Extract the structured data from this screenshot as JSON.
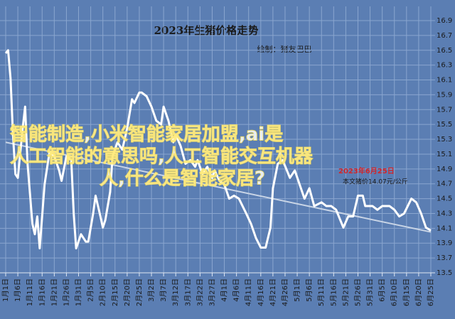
{
  "chart_data": {
    "type": "line",
    "title": "2023年生猪价格走势",
    "subtitle": "绘制：猪友巴巴",
    "annotations": [
      "2023年6月25日",
      "本文猪价14.07元/公斤"
    ],
    "overlay": [
      "智能制造,小米智能家居加盟,ai是",
      "人工智能的意思吗,人工智能交互机器",
      "人,什么是智能家居?"
    ],
    "xlim": [
      0,
      175
    ],
    "xticks": [
      {
        "value": 0,
        "label": "1月1日"
      },
      {
        "value": 5,
        "label": "1月6日"
      },
      {
        "value": 10,
        "label": "1月11日"
      },
      {
        "value": 15,
        "label": "1月16日"
      },
      {
        "value": 20,
        "label": "1月21日"
      },
      {
        "value": 25,
        "label": "1月26日"
      },
      {
        "value": 30,
        "label": "1月31日"
      },
      {
        "value": 35,
        "label": "2月5日"
      },
      {
        "value": 40,
        "label": "2月10日"
      },
      {
        "value": 45,
        "label": "2月15日"
      },
      {
        "value": 50,
        "label": "2月20日"
      },
      {
        "value": 55,
        "label": "2月25日"
      },
      {
        "value": 60,
        "label": "3月2日"
      },
      {
        "value": 65,
        "label": "3月7日"
      },
      {
        "value": 70,
        "label": "3月12日"
      },
      {
        "value": 75,
        "label": "3月17日"
      },
      {
        "value": 80,
        "label": "3月22日"
      },
      {
        "value": 85,
        "label": "3月27日"
      },
      {
        "value": 90,
        "label": "4月1日"
      },
      {
        "value": 95,
        "label": "4月6日"
      },
      {
        "value": 100,
        "label": "4月11日"
      },
      {
        "value": 105,
        "label": "4月16日"
      },
      {
        "value": 110,
        "label": "4月21日"
      },
      {
        "value": 115,
        "label": "4月26日"
      },
      {
        "value": 120,
        "label": "5月1日"
      },
      {
        "value": 125,
        "label": "5月6日"
      },
      {
        "value": 130,
        "label": "5月11日"
      },
      {
        "value": 135,
        "label": "5月16日"
      },
      {
        "value": 140,
        "label": "5月21日"
      },
      {
        "value": 145,
        "label": "5月26日"
      },
      {
        "value": 150,
        "label": "5月31日"
      },
      {
        "value": 155,
        "label": "6月5日"
      },
      {
        "value": 160,
        "label": "6月10日"
      },
      {
        "value": 165,
        "label": "6月15日"
      },
      {
        "value": 170,
        "label": "6月20日"
      },
      {
        "value": 175,
        "label": "6月25日"
      }
    ],
    "ylim": [
      13.5,
      16.9
    ],
    "yticks": [
      13.5,
      13.7,
      13.9,
      14.1,
      14.3,
      14.5,
      14.7,
      14.9,
      15.1,
      15.3,
      15.5,
      15.7,
      15.9,
      16.1,
      16.3,
      16.5,
      16.7,
      16.9
    ],
    "grid": true,
    "series": [
      {
        "color": "#ffffff",
        "x": [
          0,
          1,
          2,
          3,
          4,
          5,
          7,
          8,
          9,
          11,
          12,
          13,
          14,
          16,
          18,
          20,
          22,
          23,
          25,
          27,
          28,
          29,
          31,
          33,
          34,
          35,
          36,
          37,
          39,
          40,
          41,
          43,
          44,
          46,
          48,
          50,
          52,
          53,
          55,
          56,
          58,
          60,
          62,
          64,
          65,
          67,
          69,
          70,
          72,
          74,
          76,
          78,
          79,
          81,
          83,
          85,
          86,
          88,
          90,
          92,
          94,
          96,
          99,
          101,
          103,
          105,
          107,
          109,
          110,
          112,
          114,
          117,
          119,
          121,
          123,
          125,
          127,
          130,
          132,
          134,
          136,
          139,
          141,
          143,
          145,
          147,
          148,
          151,
          153,
          155,
          158,
          160,
          162,
          164,
          167,
          169,
          171,
          173,
          175
        ],
        "values": [
          16.46,
          16.5,
          16.12,
          15.36,
          14.83,
          14.78,
          15.45,
          15.74,
          14.97,
          14.16,
          14.02,
          14.26,
          13.83,
          14.69,
          15.12,
          15.07,
          14.88,
          14.74,
          15.07,
          15.02,
          14.3,
          13.83,
          14.02,
          13.92,
          13.92,
          14.11,
          14.3,
          14.54,
          14.26,
          14.11,
          14.21,
          14.59,
          15.07,
          15.26,
          15.16,
          15.45,
          15.84,
          15.79,
          15.93,
          15.93,
          15.88,
          15.74,
          15.55,
          15.5,
          15.74,
          15.55,
          15.26,
          15.36,
          15.21,
          14.97,
          15.02,
          14.93,
          15.02,
          14.83,
          14.93,
          14.78,
          14.88,
          14.74,
          14.69,
          14.5,
          14.54,
          14.5,
          14.3,
          14.16,
          13.97,
          13.84,
          13.84,
          14.11,
          14.64,
          14.97,
          15.02,
          14.78,
          14.88,
          14.69,
          14.5,
          14.64,
          14.4,
          14.45,
          14.4,
          14.4,
          14.35,
          14.11,
          14.26,
          14.26,
          14.54,
          14.54,
          14.4,
          14.4,
          14.35,
          14.4,
          14.4,
          14.35,
          14.26,
          14.3,
          14.5,
          14.45,
          14.3,
          14.11,
          14.07
        ]
      }
    ],
    "trend": {
      "color": "#c9d5e6",
      "x": [
        0,
        175
      ],
      "values": [
        15.26,
        14.05
      ]
    }
  }
}
